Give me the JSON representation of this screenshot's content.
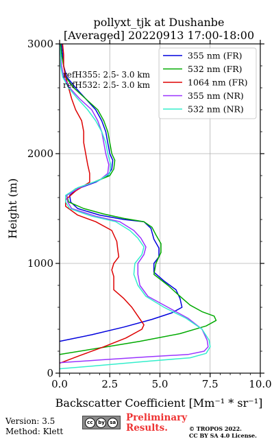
{
  "chart_data": {
    "type": "line",
    "title": "pollyxt_tjk at Dushanbe",
    "subtitle": "[Averaged] 20220913 17:00-18:00",
    "xlabel": "Backscatter Coefficient [Mm⁻¹ * sr⁻¹]",
    "ylabel": "Height (m)",
    "xlim": [
      0,
      10
    ],
    "ylim": [
      0,
      3000
    ],
    "xticks": [
      "0.0",
      "2.5",
      "5.0",
      "7.5",
      "10.0"
    ],
    "yticks": [
      "0",
      "1000",
      "2000",
      "3000"
    ],
    "grid": true,
    "legend_position": "top-right",
    "annotations": [
      "refH355:  2.5- 3.0 km",
      "refH532:  2.5- 3.0 km"
    ],
    "series": [
      {
        "name": "355 nm (FR)",
        "color": "#0000dd",
        "points": [
          [
            0,
            290
          ],
          [
            1.6,
            350
          ],
          [
            3.2,
            420
          ],
          [
            4.6,
            490
          ],
          [
            5.6,
            550
          ],
          [
            6.1,
            600
          ],
          [
            6.0,
            680
          ],
          [
            5.8,
            760
          ],
          [
            5.2,
            840
          ],
          [
            4.7,
            920
          ],
          [
            4.7,
            1000
          ],
          [
            4.95,
            1060
          ],
          [
            4.95,
            1140
          ],
          [
            4.7,
            1220
          ],
          [
            4.55,
            1320
          ],
          [
            4.2,
            1380
          ],
          [
            3.2,
            1400
          ],
          [
            2.0,
            1440
          ],
          [
            0.9,
            1500
          ],
          [
            0.55,
            1560
          ],
          [
            0.5,
            1620
          ],
          [
            0.9,
            1680
          ],
          [
            1.8,
            1740
          ],
          [
            2.4,
            1800
          ],
          [
            2.6,
            1860
          ],
          [
            2.65,
            1940
          ],
          [
            2.5,
            2000
          ],
          [
            2.4,
            2100
          ],
          [
            2.3,
            2200
          ],
          [
            2.1,
            2300
          ],
          [
            1.8,
            2400
          ],
          [
            1.3,
            2500
          ],
          [
            0.8,
            2600
          ],
          [
            0.35,
            2700
          ],
          [
            0.2,
            2800
          ],
          [
            0.15,
            2900
          ],
          [
            0.1,
            3000
          ]
        ]
      },
      {
        "name": "532 nm (FR)",
        "color": "#00aa00",
        "points": [
          [
            0,
            170
          ],
          [
            2.0,
            230
          ],
          [
            4.0,
            290
          ],
          [
            6.0,
            360
          ],
          [
            7.3,
            430
          ],
          [
            7.8,
            480
          ],
          [
            7.7,
            520
          ],
          [
            7.1,
            560
          ],
          [
            6.5,
            620
          ],
          [
            6.0,
            700
          ],
          [
            5.4,
            800
          ],
          [
            4.7,
            900
          ],
          [
            4.8,
            1000
          ],
          [
            5.05,
            1100
          ],
          [
            5.05,
            1180
          ],
          [
            4.8,
            1260
          ],
          [
            4.6,
            1330
          ],
          [
            4.2,
            1380
          ],
          [
            3.2,
            1410
          ],
          [
            2.2,
            1450
          ],
          [
            1.2,
            1500
          ],
          [
            0.45,
            1560
          ],
          [
            0.35,
            1620
          ],
          [
            0.8,
            1680
          ],
          [
            1.7,
            1740
          ],
          [
            2.5,
            1800
          ],
          [
            2.7,
            1860
          ],
          [
            2.75,
            1940
          ],
          [
            2.6,
            2000
          ],
          [
            2.5,
            2100
          ],
          [
            2.4,
            2200
          ],
          [
            2.2,
            2300
          ],
          [
            1.9,
            2400
          ],
          [
            1.3,
            2500
          ],
          [
            0.7,
            2600
          ],
          [
            0.3,
            2700
          ],
          [
            0.2,
            2800
          ],
          [
            0.1,
            2900
          ],
          [
            0.05,
            3000
          ]
        ]
      },
      {
        "name": "1064 nm (FR)",
        "color": "#dd0000",
        "points": [
          [
            0,
            90
          ],
          [
            1.0,
            160
          ],
          [
            2.2,
            240
          ],
          [
            3.3,
            320
          ],
          [
            4.1,
            400
          ],
          [
            4.2,
            440
          ],
          [
            3.9,
            520
          ],
          [
            3.6,
            600
          ],
          [
            3.2,
            680
          ],
          [
            2.7,
            760
          ],
          [
            2.7,
            880
          ],
          [
            2.6,
            940
          ],
          [
            2.7,
            1000
          ],
          [
            2.95,
            1060
          ],
          [
            2.9,
            1120
          ],
          [
            2.85,
            1200
          ],
          [
            2.6,
            1300
          ],
          [
            1.8,
            1380
          ],
          [
            0.9,
            1440
          ],
          [
            0.3,
            1520
          ],
          [
            0.3,
            1580
          ],
          [
            0.8,
            1660
          ],
          [
            1.5,
            1740
          ],
          [
            1.5,
            1820
          ],
          [
            1.4,
            1900
          ],
          [
            1.3,
            2000
          ],
          [
            1.2,
            2100
          ],
          [
            1.2,
            2200
          ],
          [
            1.1,
            2300
          ],
          [
            0.8,
            2400
          ],
          [
            0.6,
            2500
          ],
          [
            0.45,
            2600
          ],
          [
            0.3,
            2700
          ],
          [
            0.2,
            2800
          ],
          [
            0.2,
            2900
          ],
          [
            0.15,
            3000
          ]
        ]
      },
      {
        "name": "355 nm (NR)",
        "color": "#9933ff",
        "points": [
          [
            0,
            95
          ],
          [
            2.0,
            120
          ],
          [
            4.5,
            150
          ],
          [
            6.4,
            170
          ],
          [
            7.2,
            200
          ],
          [
            7.4,
            240
          ],
          [
            7.35,
            300
          ],
          [
            7.1,
            400
          ],
          [
            6.4,
            500
          ],
          [
            5.4,
            600
          ],
          [
            4.4,
            700
          ],
          [
            4.0,
            800
          ],
          [
            3.9,
            900
          ],
          [
            3.9,
            1000
          ],
          [
            4.2,
            1080
          ],
          [
            4.3,
            1150
          ],
          [
            4.05,
            1230
          ],
          [
            3.7,
            1300
          ],
          [
            3.0,
            1380
          ],
          [
            1.8,
            1430
          ],
          [
            0.6,
            1500
          ],
          [
            0.4,
            1560
          ],
          [
            0.35,
            1620
          ],
          [
            1.0,
            1690
          ],
          [
            2.0,
            1760
          ],
          [
            2.4,
            1820
          ],
          [
            2.45,
            1900
          ],
          [
            2.3,
            2000
          ],
          [
            2.2,
            2100
          ],
          [
            2.1,
            2200
          ],
          [
            1.9,
            2300
          ],
          [
            1.6,
            2400
          ],
          [
            1.0,
            2500
          ],
          [
            0.5,
            2600
          ],
          [
            0.2,
            2700
          ],
          [
            0.1,
            2800
          ],
          [
            0.05,
            2900
          ],
          [
            0.0,
            3000
          ]
        ]
      },
      {
        "name": "532 nm (NR)",
        "color": "#33eecc",
        "points": [
          [
            0,
            40
          ],
          [
            2.0,
            70
          ],
          [
            4.5,
            110
          ],
          [
            6.5,
            140
          ],
          [
            7.3,
            180
          ],
          [
            7.5,
            240
          ],
          [
            7.45,
            300
          ],
          [
            7.1,
            400
          ],
          [
            6.3,
            500
          ],
          [
            5.2,
            600
          ],
          [
            4.3,
            700
          ],
          [
            3.9,
            800
          ],
          [
            3.7,
            900
          ],
          [
            3.75,
            1000
          ],
          [
            4.1,
            1080
          ],
          [
            4.2,
            1150
          ],
          [
            3.9,
            1230
          ],
          [
            3.5,
            1300
          ],
          [
            2.8,
            1380
          ],
          [
            1.6,
            1430
          ],
          [
            0.5,
            1500
          ],
          [
            0.3,
            1560
          ],
          [
            0.3,
            1620
          ],
          [
            0.9,
            1690
          ],
          [
            2.0,
            1760
          ],
          [
            2.5,
            1820
          ],
          [
            2.55,
            1900
          ],
          [
            2.4,
            2000
          ],
          [
            2.3,
            2100
          ],
          [
            2.1,
            2200
          ],
          [
            1.8,
            2300
          ],
          [
            1.4,
            2400
          ],
          [
            0.9,
            2500
          ],
          [
            0.45,
            2600
          ],
          [
            0.15,
            2700
          ],
          [
            0.05,
            2800
          ],
          [
            0.05,
            2900
          ],
          [
            0.0,
            3000
          ]
        ]
      }
    ]
  },
  "footer": {
    "version": "Version: 3.5",
    "method": "Method: Klett",
    "preliminary_line1": "Preliminary",
    "preliminary_line2": "Results.",
    "preliminary_color": "#ee3333",
    "copyright_line1": "© TROPOS 2022.",
    "copyright_line2": "CC BY SA 4.0 License.",
    "license_badge": [
      "cc",
      "by",
      "sa"
    ]
  }
}
